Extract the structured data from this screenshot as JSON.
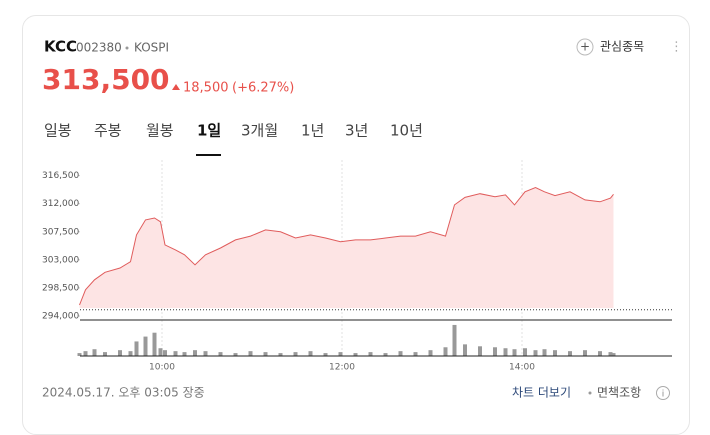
{
  "header": {
    "name": "KCC",
    "code": "002380",
    "market": "KOSPI",
    "price": "313,500",
    "change": "18,500",
    "change_pct": "(+6.27%)",
    "watch": "관심종목"
  },
  "tabs": [
    "일봉",
    "주봉",
    "월봉",
    "1일",
    "3개월",
    "1년",
    "3년",
    "10년"
  ],
  "active_tab": 3,
  "chart_data": {
    "type": "line",
    "x": [
      545,
      549,
      555,
      562,
      572,
      579,
      583,
      589,
      595,
      599,
      602,
      609,
      615,
      622,
      629,
      639,
      649,
      659,
      669,
      679,
      689,
      699,
      709,
      719,
      729,
      739,
      749,
      759,
      769,
      779,
      789,
      795,
      802,
      812,
      822,
      829,
      835,
      842,
      849,
      855,
      862,
      872,
      882,
      892,
      899,
      901
    ],
    "series": [
      {
        "name": "price",
        "color": "#e05c5c",
        "values": [
          295770,
          298200,
          299800,
          301000,
          301700,
          302700,
          307000,
          309400,
          309700,
          309100,
          305400,
          304600,
          303800,
          302200,
          303800,
          304900,
          306200,
          306800,
          307800,
          307500,
          306500,
          307000,
          306500,
          305900,
          306200,
          306200,
          306500,
          306800,
          306800,
          307500,
          306800,
          311800,
          313000,
          313600,
          313100,
          313400,
          311800,
          313900,
          314600,
          313900,
          313300,
          313900,
          312600,
          312300,
          312900,
          313500
        ]
      },
      {
        "name": "volume",
        "color": "#999999",
        "values": [
          3000,
          5000,
          7000,
          4000,
          6000,
          5000,
          15000,
          20000,
          24000,
          8000,
          6000,
          5000,
          4000,
          6000,
          5000,
          4000,
          3000,
          5000,
          4000,
          3000,
          4000,
          5000,
          3000,
          4000,
          3000,
          4000,
          3000,
          5000,
          4000,
          6000,
          9000,
          32000,
          12000,
          10000,
          9000,
          8000,
          7000,
          8000,
          6000,
          7000,
          6000,
          5000,
          6000,
          5000,
          4000,
          3000
        ]
      }
    ],
    "xlim": [
      540,
      940
    ],
    "ylim": [
      294000,
      319000
    ],
    "vlim": [
      0,
      34000
    ],
    "prev_close": 295000,
    "xticks": [
      {
        "value": 600,
        "label": "10:00"
      },
      {
        "value": 720,
        "label": "12:00"
      },
      {
        "value": 840,
        "label": "14:00"
      }
    ],
    "yticks": [
      {
        "value": 294000,
        "label": "294,000"
      },
      {
        "value": 298500,
        "label": "298,500"
      },
      {
        "value": 303000,
        "label": "303,000"
      },
      {
        "value": 307500,
        "label": "307,500"
      },
      {
        "value": 312000,
        "label": "312,000"
      },
      {
        "value": 316500,
        "label": "316,500"
      }
    ]
  },
  "footer": {
    "timestamp": "2024.05.17. 오후 03:05 장중",
    "more": "차트 더보기",
    "disclaimer": "면책조항"
  }
}
